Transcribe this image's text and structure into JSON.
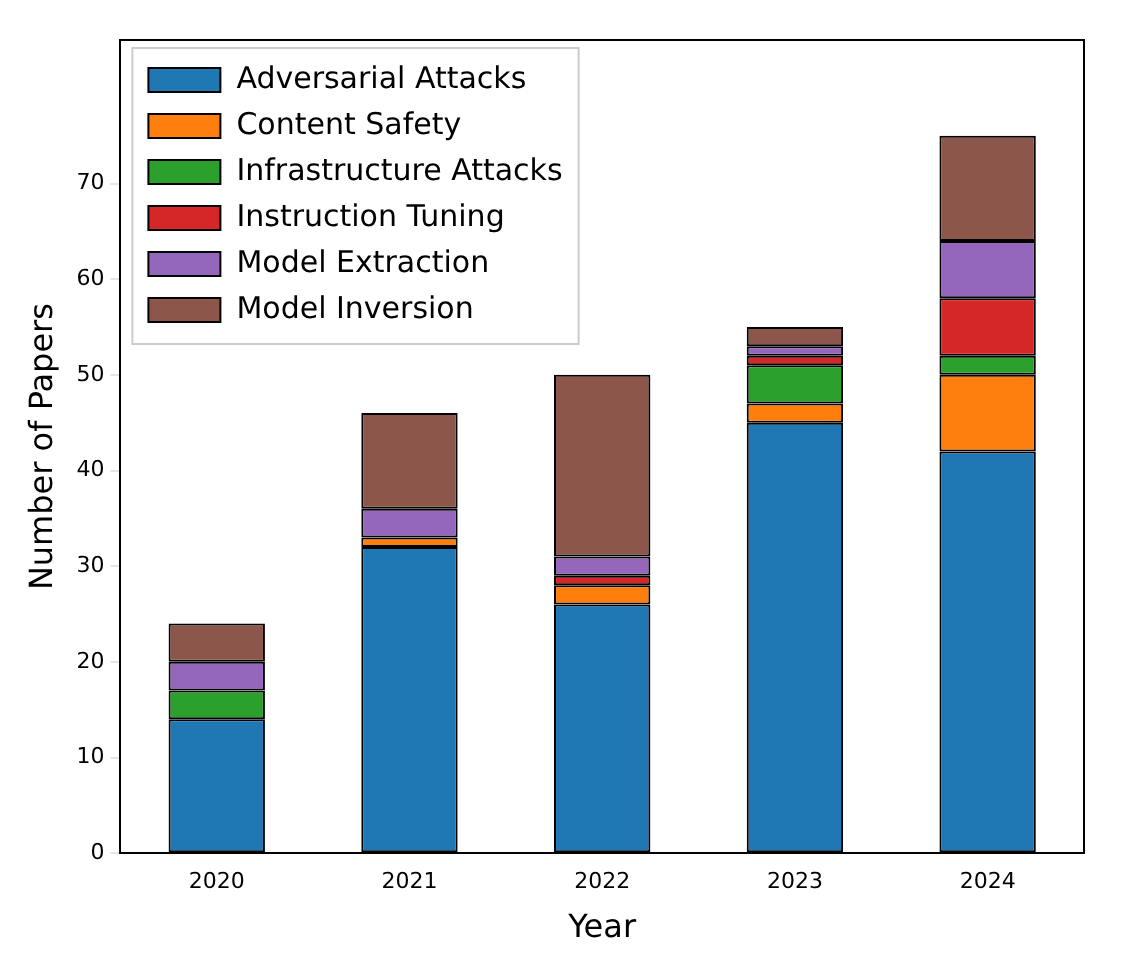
{
  "chart_data": {
    "type": "bar",
    "stacked": true,
    "xlabel": "Year",
    "ylabel": "Number of Papers",
    "categories": [
      "2020",
      "2021",
      "2022",
      "2023",
      "2024"
    ],
    "series": [
      {
        "name": "Adversarial Attacks",
        "color": "#1f77b4",
        "values": [
          14,
          32,
          26,
          45,
          42
        ]
      },
      {
        "name": "Content Safety",
        "color": "#ff7f0e",
        "values": [
          0,
          1,
          2,
          2,
          8
        ]
      },
      {
        "name": "Infrastructure Attacks",
        "color": "#2ca02c",
        "values": [
          3,
          0,
          0,
          4,
          2
        ]
      },
      {
        "name": "Instruction Tuning",
        "color": "#d62728",
        "values": [
          0,
          0,
          1,
          1,
          6
        ]
      },
      {
        "name": "Model Extraction",
        "color": "#9467bd",
        "values": [
          3,
          3,
          2,
          1,
          6
        ]
      },
      {
        "name": "Model Inversion",
        "color": "#8c564b",
        "values": [
          4,
          10,
          19,
          2,
          11
        ]
      }
    ],
    "ylim": [
      0,
      85
    ],
    "yticks": [
      0,
      10,
      20,
      30,
      40,
      50,
      60,
      70
    ],
    "grid": false,
    "legend": "top left"
  }
}
